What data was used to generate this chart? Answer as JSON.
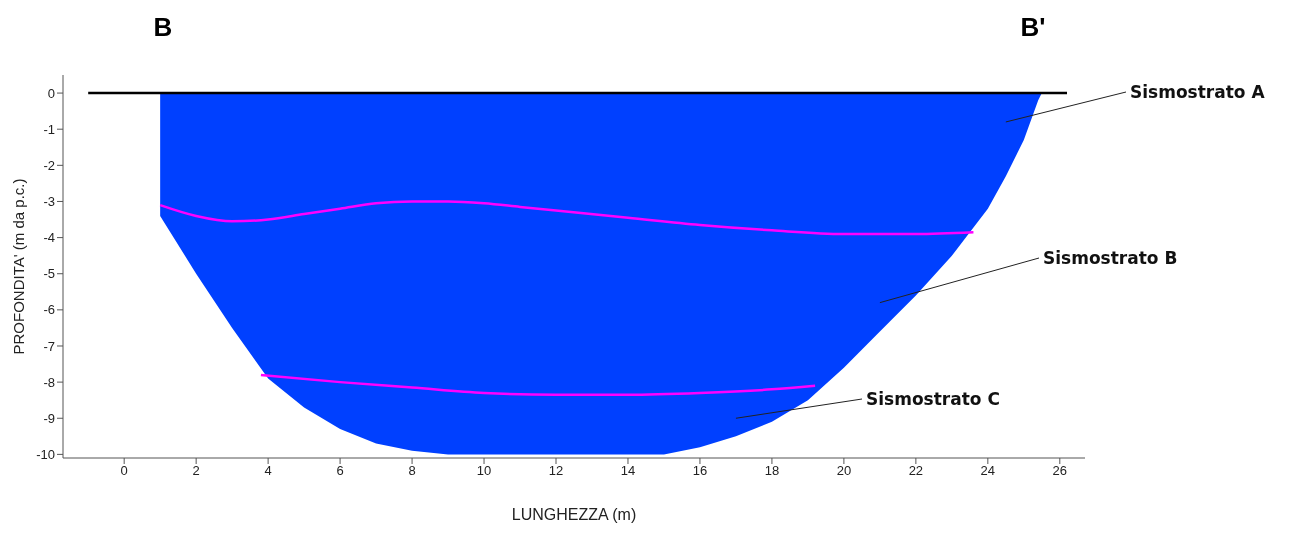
{
  "chart_data": {
    "type": "line",
    "xlabel": "LUNGHEZZA (m)",
    "ylabel": "PROFONDITA'  (m da p.c.)",
    "xlim": [
      -1.7,
      26.7
    ],
    "xticks": [
      0,
      2,
      4,
      6,
      8,
      10,
      12,
      14,
      16,
      18,
      20,
      22,
      24,
      26
    ],
    "ylim": [
      -10.1,
      0.5
    ],
    "yticks": [
      0,
      -1,
      -2,
      -3,
      -4,
      -5,
      -6,
      -7,
      -8,
      -9,
      -10
    ],
    "marker": "none",
    "line_style": "solid",
    "series": [
      {
        "type": "area",
        "color": "#0040ff",
        "x": [
          1,
          1,
          2,
          3,
          4,
          5,
          6,
          7,
          8,
          9,
          10,
          11,
          12,
          13,
          14,
          15,
          16,
          17,
          18,
          19,
          20,
          21,
          22,
          23,
          24,
          24.5,
          25,
          25.4,
          25.5
        ],
        "values": [
          0,
          -3.4,
          -5.0,
          -6.5,
          -7.9,
          -8.7,
          -9.3,
          -9.7,
          -9.9,
          -10,
          -10,
          -10,
          -10,
          -10,
          -10,
          -10,
          -9.8,
          -9.5,
          -9.1,
          -8.5,
          -7.6,
          -6.6,
          -5.6,
          -4.5,
          -3.2,
          -2.3,
          -1.3,
          -0.2,
          0
        ]
      },
      {
        "color": "#000000",
        "x": [
          -1,
          26.2
        ],
        "values": [
          0,
          0
        ]
      },
      {
        "color": "#ff00ff",
        "x": [
          1,
          2,
          3,
          4,
          5,
          6,
          7,
          8,
          9,
          10,
          11,
          12,
          14,
          16,
          18,
          20,
          22,
          23.6
        ],
        "values": [
          -3.1,
          -3.4,
          -3.55,
          -3.5,
          -3.35,
          -3.2,
          -3.05,
          -3.0,
          -3.0,
          -3.05,
          -3.15,
          -3.25,
          -3.45,
          -3.65,
          -3.8,
          -3.9,
          -3.9,
          -3.85
        ]
      },
      {
        "color": "#ff00ff",
        "x": [
          3.8,
          6,
          8,
          10,
          12,
          14,
          16,
          18,
          19.2
        ],
        "values": [
          -7.8,
          -8.0,
          -8.15,
          -8.3,
          -8.35,
          -8.35,
          -8.3,
          -8.2,
          -8.1
        ]
      }
    ],
    "annotations": [
      "B",
      "B'",
      "Sismostrato A",
      "Sismostrato B",
      "Sismostrato C"
    ]
  }
}
